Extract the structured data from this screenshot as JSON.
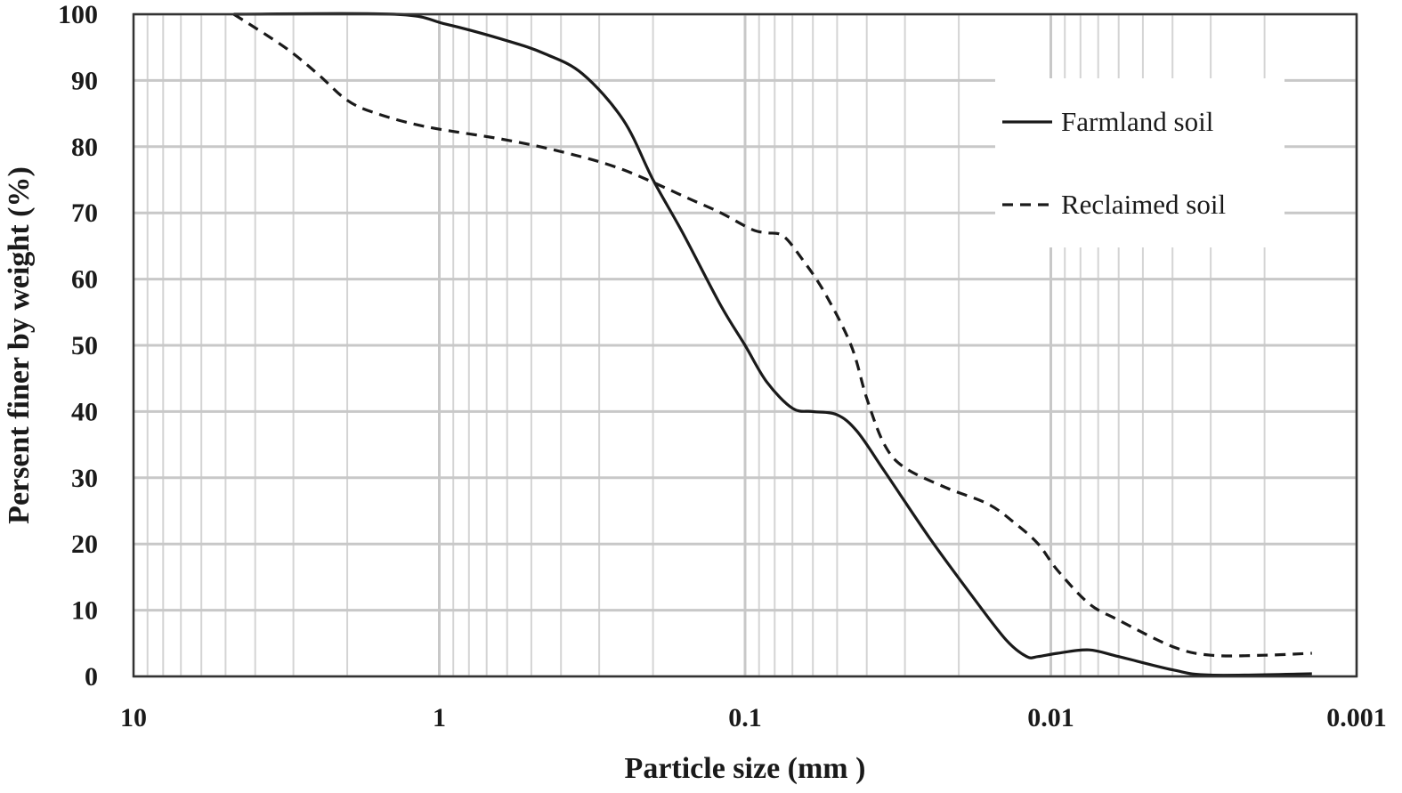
{
  "chart_data": {
    "type": "line",
    "xlabel": "Particle size (mm )",
    "ylabel": "Persent finer by weight (%)",
    "x_scale": "log",
    "x_reversed": true,
    "xlim": [
      10,
      0.001
    ],
    "ylim": [
      0,
      100
    ],
    "x_ticks": [
      "10",
      "1",
      "0.1",
      "0.01",
      "0.001"
    ],
    "y_ticks": [
      "0",
      "10",
      "20",
      "30",
      "40",
      "50",
      "60",
      "70",
      "80",
      "90",
      "100"
    ],
    "grid": true,
    "legend_position": "top-right",
    "series": [
      {
        "name": "Farmland soil",
        "style": "solid",
        "color": "#1a1a1a",
        "points": [
          [
            4.7,
            100
          ],
          [
            1.4,
            100
          ],
          [
            0.95,
            98.5
          ],
          [
            0.6,
            96
          ],
          [
            0.45,
            94
          ],
          [
            0.34,
            91
          ],
          [
            0.25,
            84
          ],
          [
            0.2,
            75
          ],
          [
            0.16,
            67
          ],
          [
            0.12,
            56
          ],
          [
            0.1,
            50
          ],
          [
            0.085,
            44.5
          ],
          [
            0.07,
            40.5
          ],
          [
            0.06,
            40
          ],
          [
            0.05,
            39.5
          ],
          [
            0.043,
            37
          ],
          [
            0.035,
            31
          ],
          [
            0.025,
            21
          ],
          [
            0.018,
            12
          ],
          [
            0.014,
            5.5
          ],
          [
            0.012,
            3
          ],
          [
            0.011,
            3
          ],
          [
            0.0095,
            3.5
          ],
          [
            0.0075,
            4
          ],
          [
            0.006,
            3
          ],
          [
            0.004,
            1
          ],
          [
            0.003,
            0.2
          ],
          [
            0.0014,
            0.4
          ]
        ]
      },
      {
        "name": "Reclaimed soil",
        "style": "dashed",
        "color": "#1a1a1a",
        "points": [
          [
            4.7,
            100
          ],
          [
            3.2,
            95
          ],
          [
            2.5,
            91
          ],
          [
            2.0,
            87
          ],
          [
            1.6,
            85
          ],
          [
            1.1,
            83
          ],
          [
            0.6,
            81
          ],
          [
            0.38,
            79
          ],
          [
            0.25,
            76.5
          ],
          [
            0.15,
            72
          ],
          [
            0.12,
            70
          ],
          [
            0.095,
            67.5
          ],
          [
            0.085,
            67
          ],
          [
            0.075,
            66.5
          ],
          [
            0.065,
            63
          ],
          [
            0.055,
            58
          ],
          [
            0.045,
            50
          ],
          [
            0.04,
            42
          ],
          [
            0.035,
            35
          ],
          [
            0.03,
            31.5
          ],
          [
            0.022,
            28.5
          ],
          [
            0.016,
            26
          ],
          [
            0.013,
            23
          ],
          [
            0.011,
            20
          ],
          [
            0.0095,
            16
          ],
          [
            0.0075,
            11
          ],
          [
            0.006,
            8.5
          ],
          [
            0.004,
            4.5
          ],
          [
            0.003,
            3.2
          ],
          [
            0.002,
            3.2
          ],
          [
            0.0014,
            3.5
          ]
        ]
      }
    ]
  }
}
